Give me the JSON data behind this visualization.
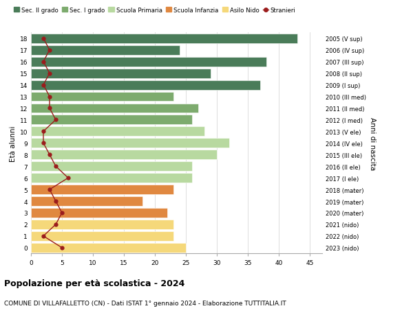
{
  "ages": [
    18,
    17,
    16,
    15,
    14,
    13,
    12,
    11,
    10,
    9,
    8,
    7,
    6,
    5,
    4,
    3,
    2,
    1,
    0
  ],
  "bar_values": [
    43,
    24,
    38,
    29,
    37,
    23,
    27,
    26,
    28,
    32,
    30,
    26,
    26,
    23,
    18,
    22,
    23,
    23,
    25
  ],
  "bar_colors": [
    "#4a7c59",
    "#4a7c59",
    "#4a7c59",
    "#4a7c59",
    "#4a7c59",
    "#7dab6e",
    "#7dab6e",
    "#7dab6e",
    "#b8d9a0",
    "#b8d9a0",
    "#b8d9a0",
    "#b8d9a0",
    "#b8d9a0",
    "#e08840",
    "#e08840",
    "#e08840",
    "#f5d87a",
    "#f5d87a",
    "#f5d87a"
  ],
  "stranieri_values": [
    2,
    3,
    2,
    3,
    2,
    3,
    3,
    4,
    2,
    2,
    3,
    4,
    6,
    3,
    4,
    5,
    4,
    2,
    5
  ],
  "right_labels": [
    "2005 (V sup)",
    "2006 (IV sup)",
    "2007 (III sup)",
    "2008 (II sup)",
    "2009 (I sup)",
    "2010 (III med)",
    "2011 (II med)",
    "2012 (I med)",
    "2013 (V ele)",
    "2014 (IV ele)",
    "2015 (III ele)",
    "2016 (II ele)",
    "2017 (I ele)",
    "2018 (mater)",
    "2019 (mater)",
    "2020 (mater)",
    "2021 (nido)",
    "2022 (nido)",
    "2023 (nido)"
  ],
  "legend_labels": [
    "Sec. II grado",
    "Sec. I grado",
    "Scuola Primaria",
    "Scuola Infanzia",
    "Asilo Nido",
    "Stranieri"
  ],
  "legend_colors": [
    "#4a7c59",
    "#7dab6e",
    "#b8d9a0",
    "#e08840",
    "#f5d87a",
    "#9b1c1c"
  ],
  "ylabel_left": "Età alunni",
  "ylabel_right": "Anni di nascita",
  "title": "Popolazione per età scolastica - 2024",
  "subtitle": "COMUNE DI VILLAFALLETTO (CN) - Dati ISTAT 1° gennaio 2024 - Elaborazione TUTTITALIA.IT",
  "xlim": [
    0,
    47
  ],
  "xticks": [
    0,
    5,
    10,
    15,
    20,
    25,
    30,
    35,
    40,
    45
  ],
  "stranieri_color": "#9b1c1c",
  "background_color": "#ffffff",
  "grid_color": "#dddddd"
}
